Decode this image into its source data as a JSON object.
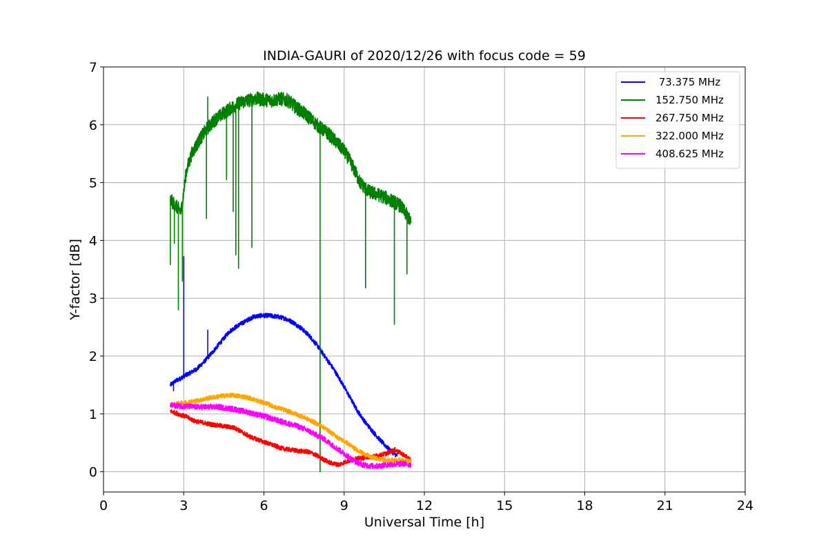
{
  "chart_data": {
    "type": "line",
    "title": "INDIA-GAURI of 2020/12/26 with focus code = 59",
    "xlabel": "Universal Time [h]",
    "ylabel": "Y-factor [dB]",
    "xlim": [
      0,
      24
    ],
    "ylim": [
      -0.35,
      7
    ],
    "xticks": [
      "0",
      "3",
      "6",
      "9",
      "12",
      "15",
      "18",
      "21",
      "24"
    ],
    "yticks": [
      "0",
      "1",
      "2",
      "3",
      "4",
      "5",
      "6",
      "7"
    ],
    "grid": true,
    "legend_position": "top-right",
    "series": [
      {
        "name": " 73.375 MHz",
        "color": "#0000ff",
        "noise": 0.04,
        "x": [
          2.5,
          2.7,
          2.9,
          3.0,
          3.2,
          3.5,
          3.8,
          4.1,
          4.4,
          4.7,
          5.0,
          5.3,
          5.6,
          5.9,
          6.2,
          6.5,
          6.8,
          7.1,
          7.4,
          7.7,
          8.0,
          8.3,
          8.6,
          8.9,
          9.2,
          9.5,
          9.8,
          10.1,
          10.4,
          10.7,
          10.9,
          11.0
        ],
        "y": [
          1.5,
          1.57,
          1.62,
          1.65,
          1.7,
          1.78,
          1.92,
          2.08,
          2.25,
          2.42,
          2.52,
          2.6,
          2.68,
          2.7,
          2.7,
          2.68,
          2.65,
          2.58,
          2.48,
          2.35,
          2.18,
          1.98,
          1.78,
          1.55,
          1.3,
          1.05,
          0.85,
          0.68,
          0.52,
          0.38,
          0.3,
          0.28
        ],
        "spikes": [
          [
            2.62,
            1.4
          ],
          [
            3.0,
            3.72
          ],
          [
            3.9,
            2.45
          ]
        ]
      },
      {
        "name": "152.750 MHz",
        "color": "#008000",
        "noise": 0.12,
        "x": [
          2.5,
          2.7,
          2.9,
          3.1,
          3.3,
          3.6,
          3.9,
          4.2,
          4.5,
          4.8,
          5.1,
          5.4,
          5.7,
          6.0,
          6.3,
          6.6,
          6.9,
          7.2,
          7.5,
          7.8,
          8.1,
          8.4,
          8.7,
          9.0,
          9.3,
          9.6,
          9.9,
          10.2,
          10.5,
          10.8,
          11.1,
          11.4,
          11.5
        ],
        "y": [
          4.7,
          4.6,
          4.5,
          5.2,
          5.5,
          5.75,
          5.95,
          6.1,
          6.2,
          6.3,
          6.38,
          6.42,
          6.45,
          6.43,
          6.42,
          6.45,
          6.42,
          6.3,
          6.2,
          6.08,
          5.95,
          5.85,
          5.7,
          5.55,
          5.3,
          5.0,
          4.85,
          4.8,
          4.75,
          4.68,
          4.6,
          4.4,
          4.3
        ],
        "spikes": [
          [
            2.5,
            3.58
          ],
          [
            2.65,
            3.95
          ],
          [
            2.8,
            2.8
          ],
          [
            2.95,
            3.3
          ],
          [
            3.85,
            4.38
          ],
          [
            3.9,
            6.48
          ],
          [
            4.6,
            5.05
          ],
          [
            4.85,
            4.5
          ],
          [
            4.95,
            3.75
          ],
          [
            5.05,
            3.52
          ],
          [
            5.55,
            3.88
          ],
          [
            8.1,
            0.0
          ],
          [
            9.8,
            3.18
          ],
          [
            10.88,
            2.55
          ],
          [
            11.35,
            3.42
          ]
        ]
      },
      {
        "name": "267.750 MHz",
        "color": "#ff0000",
        "noise": 0.04,
        "x": [
          2.5,
          2.8,
          3.1,
          3.4,
          3.7,
          4.0,
          4.3,
          4.6,
          4.9,
          5.2,
          5.5,
          5.8,
          6.1,
          6.4,
          6.7,
          7.0,
          7.3,
          7.6,
          7.9,
          8.2,
          8.5,
          8.8,
          9.1,
          9.4,
          9.7,
          10.0,
          10.3,
          10.6,
          10.9,
          11.2,
          11.5
        ],
        "y": [
          1.05,
          1.0,
          0.95,
          0.88,
          0.85,
          0.82,
          0.8,
          0.78,
          0.76,
          0.68,
          0.6,
          0.55,
          0.5,
          0.45,
          0.4,
          0.38,
          0.36,
          0.35,
          0.3,
          0.22,
          0.15,
          0.12,
          0.18,
          0.22,
          0.24,
          0.26,
          0.28,
          0.32,
          0.38,
          0.3,
          0.2
        ],
        "spikes": []
      },
      {
        "name": "322.000 MHz",
        "color": "#ffa500",
        "noise": 0.04,
        "x": [
          2.5,
          2.8,
          3.1,
          3.4,
          3.7,
          4.0,
          4.3,
          4.6,
          4.9,
          5.2,
          5.5,
          5.8,
          6.1,
          6.4,
          6.7,
          7.0,
          7.3,
          7.6,
          7.9,
          8.2,
          8.5,
          8.8,
          9.1,
          9.4,
          9.7,
          10.0,
          10.3,
          10.6,
          10.9,
          11.2,
          11.5
        ],
        "y": [
          1.15,
          1.18,
          1.2,
          1.22,
          1.25,
          1.28,
          1.3,
          1.32,
          1.32,
          1.3,
          1.27,
          1.22,
          1.18,
          1.12,
          1.08,
          1.03,
          0.98,
          0.92,
          0.85,
          0.78,
          0.68,
          0.58,
          0.5,
          0.4,
          0.32,
          0.25,
          0.22,
          0.2,
          0.2,
          0.2,
          0.18
        ],
        "spikes": []
      },
      {
        "name": "408.625 MHz",
        "color": "#ff00ff",
        "noise": 0.05,
        "x": [
          2.5,
          2.8,
          3.1,
          3.4,
          3.7,
          4.0,
          4.3,
          4.6,
          4.9,
          5.2,
          5.5,
          5.8,
          6.1,
          6.4,
          6.7,
          7.0,
          7.3,
          7.6,
          7.9,
          8.2,
          8.5,
          8.8,
          9.1,
          9.4,
          9.7,
          10.0,
          10.3,
          10.6,
          10.9,
          11.2,
          11.5
        ],
        "y": [
          1.15,
          1.14,
          1.13,
          1.12,
          1.12,
          1.12,
          1.12,
          1.1,
          1.08,
          1.05,
          1.02,
          0.98,
          0.95,
          0.9,
          0.86,
          0.82,
          0.78,
          0.72,
          0.65,
          0.58,
          0.48,
          0.38,
          0.28,
          0.18,
          0.12,
          0.1,
          0.1,
          0.12,
          0.13,
          0.14,
          0.12
        ],
        "spikes": []
      }
    ]
  }
}
